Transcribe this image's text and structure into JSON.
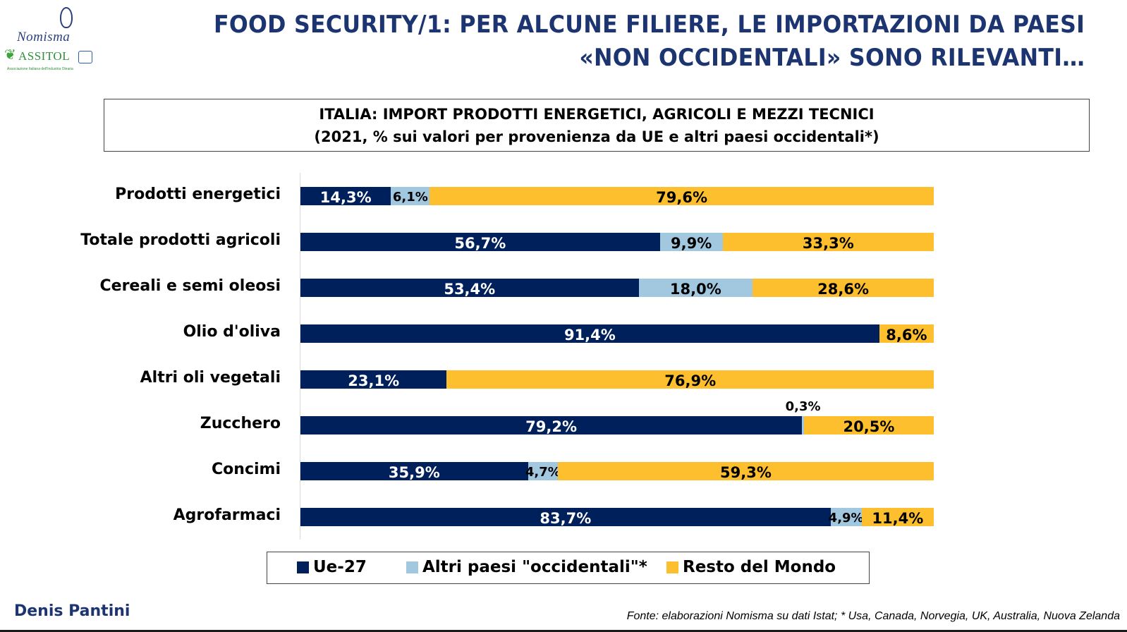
{
  "logos": {
    "nomisma": "Nomisma",
    "assitol": "ASSITOL",
    "assitol_sub": "Associazione Italiana dell'Industria Olearia"
  },
  "header": {
    "title_line1": "FOOD SECURITY/1: PER ALCUNE FILIERE, LE IMPORTAZIONI DA PAESI",
    "title_line2": "«NON OCCIDENTALI» SONO RILEVANTI…"
  },
  "colors": {
    "title": "#1c3570",
    "ue27": "#00205b",
    "altri": "#a2c8e0",
    "resto": "#fdbf2d"
  },
  "chart_data": {
    "type": "bar",
    "orientation": "horizontal",
    "stacked": true,
    "percent_stacked": true,
    "title": "ITALIA: IMPORT PRODOTTI ENERGETICI, AGRICOLI E MEZZI TECNICI",
    "subtitle": "(2021, % sui valori per provenienza da UE e altri paesi occidentali*)",
    "xlabel": "",
    "ylabel": "",
    "xlim": [
      0,
      100
    ],
    "grid": false,
    "legend_position": "bottom",
    "categories": [
      "Prodotti energetici",
      "Totale prodotti agricoli",
      "Cereali e semi oleosi",
      "Olio d'oliva",
      "Altri oli vegetali",
      "Zucchero",
      "Concimi",
      "Agrofarmaci"
    ],
    "series": [
      {
        "name": "Ue-27",
        "color": "#00205b",
        "label_color": "#ffffff",
        "values": [
          14.3,
          56.7,
          53.4,
          91.4,
          23.1,
          79.2,
          35.9,
          83.7
        ],
        "labels": [
          "14,3%",
          "56,7%",
          "53,4%",
          "91,4%",
          "23,1%",
          "79,2%",
          "35,9%",
          "83,7%"
        ]
      },
      {
        "name": "Altri paesi \"occidentali\"*",
        "color": "#a2c8e0",
        "label_color": "#000000",
        "values": [
          6.1,
          9.9,
          18.0,
          0,
          0,
          0.3,
          4.7,
          4.9
        ],
        "labels": [
          "6,1%",
          "9,9%",
          "18,0%",
          "",
          "",
          "0,3%",
          "4,7%",
          "4,9%"
        ]
      },
      {
        "name": "Resto del Mondo",
        "color": "#fdbf2d",
        "label_color": "#000000",
        "values": [
          79.6,
          33.3,
          28.6,
          8.6,
          76.9,
          20.5,
          59.3,
          11.4
        ],
        "labels": [
          "79,6%",
          "33,3%",
          "28,6%",
          "8,6%",
          "76,9%",
          "20,5%",
          "59,3%",
          "11,4%"
        ]
      }
    ]
  },
  "footer": {
    "author": "Denis Pantini",
    "source": "Fonte: elaborazioni Nomisma su dati Istat; * Usa, Canada, Norvegia, UK, Australia, Nuova Zelanda"
  }
}
